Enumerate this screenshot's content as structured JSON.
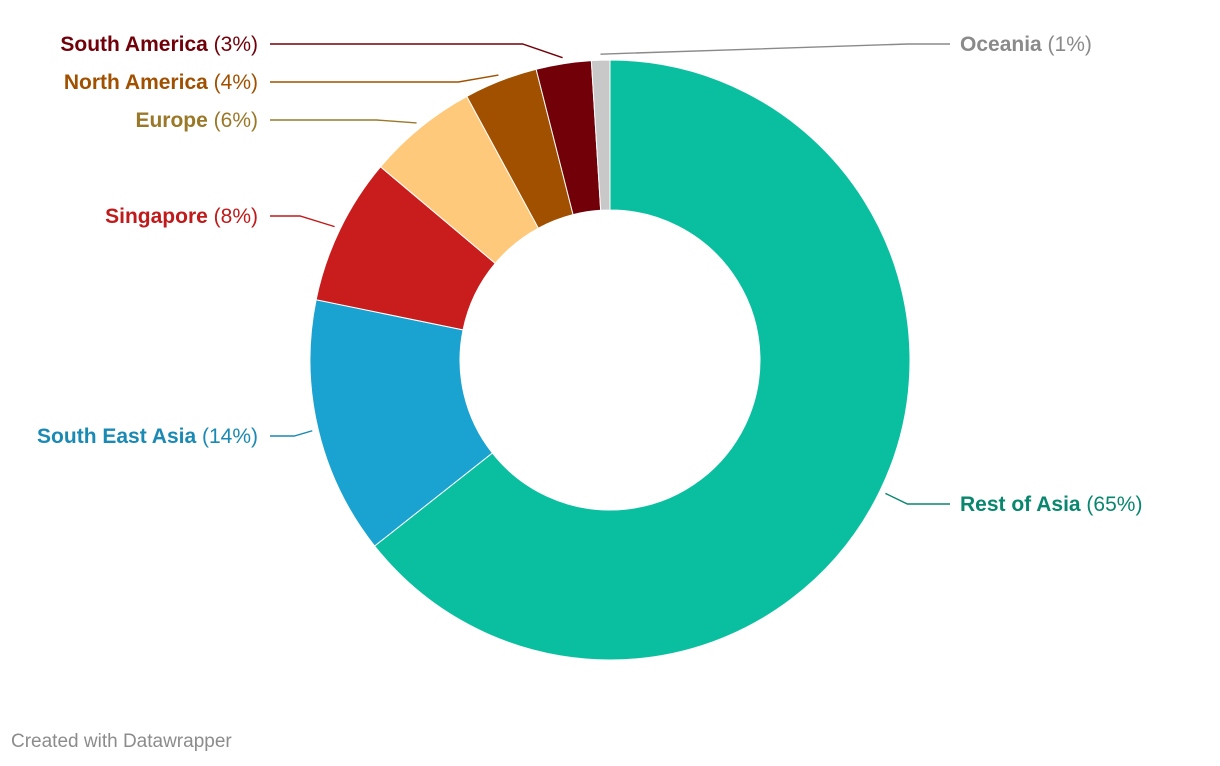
{
  "chart_data": {
    "type": "pie",
    "variant": "donut",
    "slices": [
      {
        "label": "Rest of Asia",
        "value": 65,
        "value_text": "(65%)",
        "color": "#0abf9f",
        "label_color": "#09866e"
      },
      {
        "label": "South East Asia",
        "value": 14,
        "value_text": "(14%)",
        "color": "#1aa2d0",
        "label_color": "#1a8ab4"
      },
      {
        "label": "Singapore",
        "value": 8,
        "value_text": "(8%)",
        "color": "#c91c1c",
        "label_color": "#c01a1a"
      },
      {
        "label": "Europe",
        "value": 6,
        "value_text": "(6%)",
        "color": "#fec97b",
        "label_color": "#9a7828"
      },
      {
        "label": "North America",
        "value": 4,
        "value_text": "(4%)",
        "color": "#a15000",
        "label_color": "#a15000"
      },
      {
        "label": "South America",
        "value": 3,
        "value_text": "(3%)",
        "color": "#710009",
        "label_color": "#710009"
      },
      {
        "label": "Oceania",
        "value": 1,
        "value_text": "(1%)",
        "color": "#c8c8c8",
        "label_color": "#8a8a8a"
      }
    ]
  },
  "footer": {
    "credit": "Created with Datawrapper"
  }
}
